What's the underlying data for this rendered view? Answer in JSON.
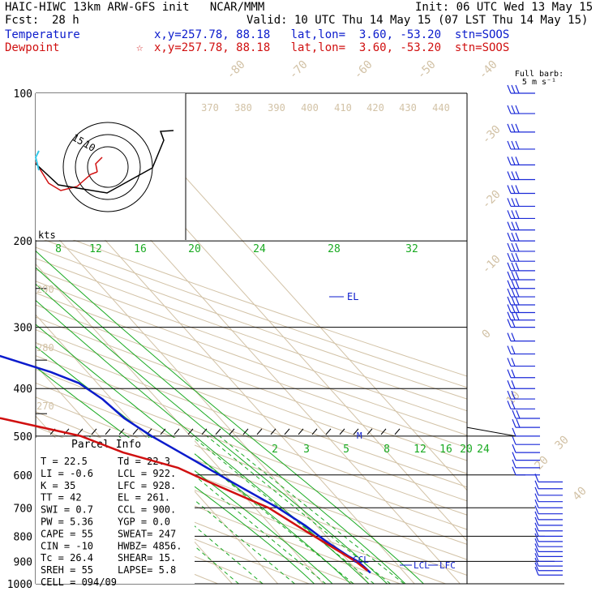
{
  "header": {
    "model": "HAIC-HIWC 13km ARW-GFS init   NCAR/MMM",
    "init": "Init: 06 UTC Wed 13 May 15",
    "fcst_label": "Fcst:",
    "fcst_value": "28 h",
    "valid": "Valid: 10 UTC Thu 14 May 15 (07 LST Thu 14 May 15)",
    "temp_label": "Temperature",
    "temp_info": "x,y=257.78, 88.18   lat,lon=  3.60, -53.20  stn=SOOS",
    "dew_label": "Dewpoint",
    "dew_star": "☆",
    "dew_info": "x,y=257.78, 88.18   lat,lon=  3.60, -53.20  stn=SOOS"
  },
  "barb_legend": {
    "line1": "Full barb:",
    "line2": "5 m s⁻¹"
  },
  "hodograph": {
    "unit_label": "kts",
    "ring_labels": [
      "15",
      "10"
    ]
  },
  "parcel_info": {
    "title": "Parcel Info",
    "rows": [
      [
        "T   =   22.5",
        "Td  =  22.3"
      ],
      [
        "LI  =   -0.6",
        "LCL =  922."
      ],
      [
        "K   =     35",
        "LFC =  928."
      ],
      [
        "TT  =     42",
        "EL  =  261."
      ],
      [
        "SWI =    0.7",
        "CCL =  900."
      ],
      [
        "PW  =   5.36",
        "YGP =   0.0"
      ],
      [
        "CAPE =    55",
        "SWEAT=  247"
      ],
      [
        "CIN  =   -10",
        "HWBZ= 4856."
      ],
      [
        "Tc  =   26.4",
        "SHEAR=  15."
      ],
      [
        "SREH =    55",
        "LAPSE=  5.8"
      ],
      [
        "CELL = 094/09",
        ""
      ]
    ]
  },
  "level_labels": {
    "el": "EL",
    "ccl": "CCL",
    "lcl": "LCL",
    "lfc": "LFC",
    "m": "M"
  },
  "chart_data": {
    "type": "line",
    "title": "",
    "ylabel": "",
    "y_scale": "log",
    "pressure_ticks": [
      100,
      200,
      300,
      400,
      500,
      600,
      700,
      800,
      900,
      1000
    ],
    "isotherm_labels": [
      "-80",
      "-70",
      "-60",
      "-50",
      "-40",
      "-30",
      "-20",
      "-10",
      "0",
      "10",
      "20",
      "30",
      "40"
    ],
    "isentrope_labels": [
      "370",
      "380",
      "390",
      "400",
      "410",
      "420",
      "430",
      "440"
    ],
    "theta_side_labels": [
      "290",
      "280",
      "270"
    ],
    "moist_adiabat_labels": [
      "8",
      "12",
      "16",
      "20",
      "24",
      "28",
      "32"
    ],
    "mixing_ratio_labels": [
      "2",
      "3",
      "5",
      "8",
      "12",
      "16",
      "20",
      "24"
    ],
    "series": [
      {
        "name": "Temperature",
        "color": "#0b1bcc",
        "points": [
          [
            100,
            -89
          ],
          [
            110,
            -84
          ],
          [
            130,
            -75
          ],
          [
            150,
            -67
          ],
          [
            170,
            -60
          ],
          [
            200,
            -53
          ],
          [
            230,
            -44
          ],
          [
            260,
            -36
          ],
          [
            300,
            -26
          ],
          [
            340,
            -17
          ],
          [
            370,
            -8
          ],
          [
            390,
            -4
          ],
          [
            420,
            -2
          ],
          [
            460,
            -1
          ],
          [
            500,
            1.5
          ],
          [
            560,
            6
          ],
          [
            620,
            10
          ],
          [
            700,
            15
          ],
          [
            760,
            17.5
          ],
          [
            820,
            19
          ],
          [
            880,
            21
          ],
          [
            900,
            22
          ],
          [
            922,
            22.3
          ],
          [
            950,
            22.5
          ]
        ]
      },
      {
        "name": "Dewpoint",
        "color": "#d01010",
        "points": [
          [
            100,
            -82
          ],
          [
            110,
            -84
          ],
          [
            130,
            -87
          ],
          [
            150,
            -92
          ],
          [
            170,
            -94
          ],
          [
            190,
            -95
          ],
          [
            200,
            -95
          ],
          [
            220,
            -83
          ],
          [
            240,
            -78
          ],
          [
            260,
            -82
          ],
          [
            280,
            -88
          ],
          [
            300,
            -93
          ],
          [
            320,
            -77
          ],
          [
            350,
            -55
          ],
          [
            380,
            -58
          ],
          [
            400,
            -66
          ],
          [
            430,
            -47
          ],
          [
            460,
            -28
          ],
          [
            500,
            -14
          ],
          [
            540,
            -8
          ],
          [
            580,
            1
          ],
          [
            620,
            5
          ],
          [
            700,
            13
          ],
          [
            780,
            16.5
          ],
          [
            850,
            19.5
          ],
          [
            900,
            21.5
          ],
          [
            940,
            22.3
          ]
        ]
      }
    ],
    "hodograph_trace": [
      [
        6,
        -6
      ],
      [
        8,
        -14
      ],
      [
        10,
        -22
      ],
      [
        15,
        -24
      ],
      [
        20,
        -27
      ],
      [
        28,
        -25
      ],
      [
        35,
        -20
      ],
      [
        40,
        -11
      ],
      [
        44,
        0
      ],
      [
        52,
        8
      ],
      [
        60,
        8
      ]
    ],
    "wind_barbs": {
      "pressures": [
        100,
        110,
        120,
        130,
        140,
        150,
        160,
        170,
        180,
        190,
        200,
        210,
        220,
        230,
        240,
        250,
        260,
        270,
        280,
        290,
        300,
        320,
        340,
        360,
        380,
        400,
        420,
        440,
        460,
        480,
        500,
        520,
        540,
        560,
        580,
        600,
        620,
        640,
        660,
        680,
        700,
        720,
        740,
        760,
        780,
        800,
        820,
        840,
        860,
        880,
        900,
        920,
        940,
        960
      ]
    }
  }
}
